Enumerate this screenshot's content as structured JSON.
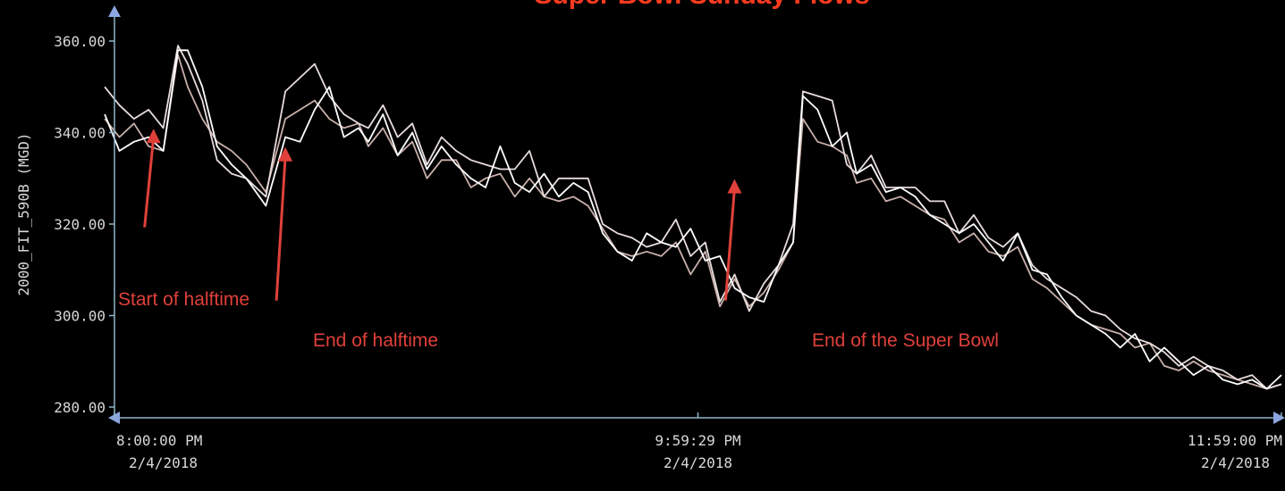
{
  "chart_data": {
    "type": "line",
    "title": "Super Bowl Sunday Flows",
    "ylabel": "2000_FIT_590B (MGD)",
    "xlabel": "",
    "ylim": [
      280,
      360
    ],
    "yticks": [
      {
        "v": 360,
        "label": "360.00"
      },
      {
        "v": 340,
        "label": "340.00"
      },
      {
        "v": 320,
        "label": "320.00"
      },
      {
        "v": 300,
        "label": "300.00"
      },
      {
        "v": 280,
        "label": "280.00"
      }
    ],
    "xlim": [
      0,
      239
    ],
    "x_unit": "minutes after 8:00:00 PM 2/4/2018",
    "xticks": [
      {
        "v": 0,
        "time": "8:00:00 PM",
        "date": "2/4/2018"
      },
      {
        "v": 119.5,
        "time": "9:59:29 PM",
        "date": "2/4/2018"
      },
      {
        "v": 239,
        "time": "11:59:00 PM",
        "date": "2/4/2018"
      }
    ],
    "grid": false,
    "legend": "none",
    "colors": {
      "line1": "#ffffff",
      "line2": "#e8dcdc",
      "line3": "#c9b0aa",
      "axis": "#8fb6c8",
      "annotation": "#e0403a",
      "title": "#ff3b1f"
    },
    "series": [
      {
        "color": "#ffffff",
        "x": [
          -2,
          1,
          4,
          7,
          10,
          13,
          15,
          18,
          21,
          24,
          27,
          31,
          35,
          38,
          41,
          44,
          47,
          50,
          52,
          55,
          58,
          61,
          64,
          67,
          70,
          73,
          76,
          79,
          82,
          85,
          88,
          91,
          94,
          97,
          100,
          103,
          106,
          109,
          112,
          115,
          118,
          121,
          124,
          127,
          130,
          133,
          136,
          139,
          141,
          144,
          147,
          150,
          152,
          155,
          158,
          161,
          164,
          167,
          170,
          173,
          176,
          179,
          182,
          185,
          188,
          191,
          194,
          197,
          200,
          203,
          206,
          209,
          212,
          215,
          218,
          221,
          224,
          227,
          230,
          233,
          236,
          239
        ],
        "values": [
          344,
          336,
          338,
          339,
          336,
          358,
          358,
          350,
          337,
          333,
          330,
          324,
          339,
          338,
          345,
          350,
          339,
          341,
          338,
          344,
          335,
          340,
          332,
          337,
          333,
          330,
          328,
          337,
          329,
          327,
          331,
          326,
          329,
          327,
          318,
          314,
          312,
          318,
          316,
          315,
          319,
          312,
          313,
          306,
          304,
          303,
          311,
          316,
          348,
          345,
          337,
          340,
          331,
          333,
          327,
          328,
          326,
          322,
          320,
          318,
          320,
          316,
          312,
          318,
          310,
          309,
          304,
          300,
          298,
          296,
          293,
          296,
          290,
          293,
          290,
          287,
          289,
          286,
          285,
          286,
          284,
          287
        ]
      },
      {
        "color": "#e8dcdc",
        "x": [
          -2,
          1,
          4,
          7,
          10,
          13,
          15,
          18,
          21,
          24,
          27,
          31,
          35,
          38,
          41,
          44,
          47,
          50,
          52,
          55,
          58,
          61,
          64,
          67,
          70,
          73,
          76,
          79,
          82,
          85,
          88,
          91,
          94,
          97,
          100,
          103,
          106,
          109,
          112,
          115,
          118,
          121,
          124,
          127,
          130,
          133,
          136,
          139,
          141,
          144,
          147,
          150,
          152,
          155,
          158,
          161,
          164,
          167,
          170,
          173,
          176,
          179,
          182,
          185,
          188,
          191,
          194,
          197,
          200,
          203,
          206,
          209,
          212,
          215,
          218,
          221,
          224,
          227,
          230,
          233,
          236,
          239
        ],
        "values": [
          350,
          346,
          343,
          345,
          341,
          359,
          355,
          347,
          334,
          331,
          330,
          326,
          349,
          352,
          355,
          348,
          344,
          342,
          341,
          346,
          339,
          342,
          333,
          339,
          336,
          334,
          333,
          332,
          332,
          336,
          326,
          330,
          330,
          330,
          320,
          318,
          317,
          315,
          316,
          321,
          313,
          316,
          303,
          309,
          301,
          307,
          311,
          320,
          349,
          348,
          347,
          333,
          331,
          335,
          328,
          328,
          328,
          325,
          325,
          318,
          322,
          317,
          315,
          318,
          311,
          308,
          306,
          304,
          301,
          300,
          297,
          295,
          294,
          292,
          289,
          291,
          289,
          288,
          286,
          287,
          284,
          285
        ]
      },
      {
        "color": "#c9b0aa",
        "x": [
          -2,
          1,
          4,
          7,
          10,
          13,
          15,
          18,
          21,
          24,
          27,
          31,
          35,
          38,
          41,
          44,
          47,
          50,
          52,
          55,
          58,
          61,
          64,
          67,
          70,
          73,
          76,
          79,
          82,
          85,
          88,
          91,
          94,
          97,
          100,
          103,
          106,
          109,
          112,
          115,
          118,
          121,
          124,
          127,
          130,
          133,
          136,
          139,
          141,
          144,
          147,
          150,
          152,
          155,
          158,
          161,
          164,
          167,
          170,
          173,
          176,
          179,
          182,
          185,
          188,
          191,
          194,
          197,
          200,
          203,
          206,
          209,
          212,
          215,
          218,
          221,
          224,
          227,
          230,
          233,
          236,
          239
        ],
        "values": [
          343,
          339,
          342,
          337,
          336,
          357,
          350,
          343,
          338,
          336,
          333,
          327,
          343,
          345,
          347,
          343,
          341,
          342,
          337,
          341,
          335,
          338,
          330,
          334,
          334,
          328,
          330,
          331,
          326,
          330,
          326,
          325,
          326,
          324,
          319,
          314,
          313,
          314,
          313,
          316,
          309,
          314,
          302,
          308,
          302,
          305,
          310,
          316,
          343,
          338,
          337,
          335,
          329,
          330,
          325,
          326,
          324,
          322,
          321,
          316,
          318,
          314,
          313,
          315,
          308,
          306,
          303,
          300,
          298,
          297,
          296,
          293,
          294,
          289,
          288,
          290,
          288,
          287,
          286,
          285,
          284,
          285
        ]
      }
    ],
    "annotations": [
      {
        "label": "Start of halftime",
        "x": 8,
        "y": 342,
        "tx": 9,
        "ty": 315
      },
      {
        "label": "End of halftime",
        "x": 35,
        "y": 338,
        "tx": 36,
        "ty": 299
      },
      {
        "label": "End of the Super Bowl",
        "x": 127,
        "y": 331,
        "tx": 129,
        "ty": 299
      }
    ]
  }
}
